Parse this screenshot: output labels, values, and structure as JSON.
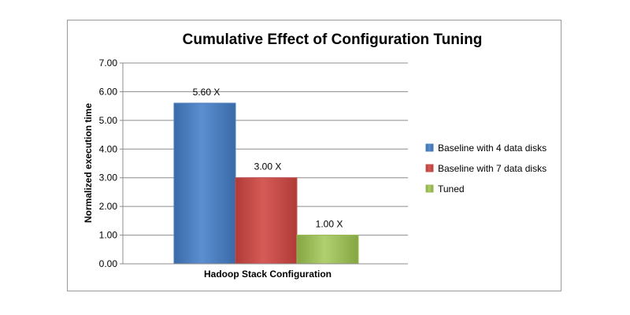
{
  "chart_data": {
    "type": "bar",
    "title": "Cumulative Effect of Configuration Tuning",
    "xlabel": "Hadoop Stack Configuration",
    "ylabel": "Normalized execution time",
    "categories": [
      "Hadoop Stack Configuration"
    ],
    "series": [
      {
        "name": "Baseline with 4 data disks",
        "values": [
          5.6
        ],
        "label": "5.60 X",
        "color": "#4a7ebb"
      },
      {
        "name": "Baseline with 7 data disks",
        "values": [
          3.0
        ],
        "label": "3.00 X",
        "color": "#c0504d"
      },
      {
        "name": "Tuned",
        "values": [
          1.0
        ],
        "label": "1.00 X",
        "color": "#9bbb59"
      }
    ],
    "ylim": [
      0,
      7
    ],
    "yticks": [
      "0.00",
      "1.00",
      "2.00",
      "3.00",
      "4.00",
      "5.00",
      "6.00",
      "7.00"
    ],
    "grid": true,
    "legend_position": "right"
  }
}
